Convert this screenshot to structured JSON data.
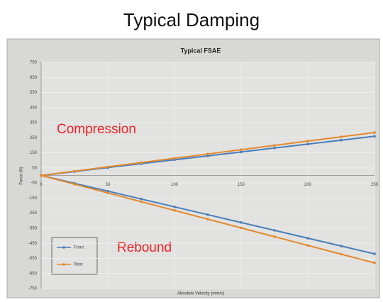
{
  "page_title": "Typical Damping",
  "chart_data": {
    "type": "line",
    "title": "Typical FSAE",
    "x_label": "Absolute Velocity (mm/s)",
    "y_label": "Force (N)",
    "x": [
      0,
      25,
      50,
      75,
      100,
      125,
      150,
      175,
      200,
      225,
      250
    ],
    "series": [
      {
        "name": "Front",
        "color": "#4a7ebb",
        "values": [
          0,
          26,
          52,
          78,
          104,
          130,
          156,
          182,
          208,
          234,
          260
        ],
        "rebound_values": [
          0,
          -52,
          -104,
          -156,
          -208,
          -260,
          -312,
          -364,
          -416,
          -468,
          -520
        ]
      },
      {
        "name": "Rear",
        "color": "#e38a2e",
        "values": [
          0,
          28.5,
          57,
          85.5,
          114,
          142.5,
          171,
          199.5,
          228,
          256.5,
          285
        ],
        "rebound_values": [
          0,
          -58,
          -116,
          -174,
          -232,
          -290,
          -348,
          -406,
          -464,
          -522,
          -580
        ]
      }
    ],
    "annotations": [
      "Compression",
      "Rebound"
    ],
    "xlim": [
      0,
      250
    ],
    "xticks": [
      0,
      50,
      100,
      150,
      200,
      250
    ],
    "ylim": [
      -750,
      750
    ],
    "yticks": [
      750,
      650,
      550,
      450,
      350,
      250,
      150,
      50,
      -50,
      -150,
      -250,
      -350,
      -450,
      -550,
      -650,
      -750
    ],
    "grid": true,
    "legend": "lower-left"
  }
}
